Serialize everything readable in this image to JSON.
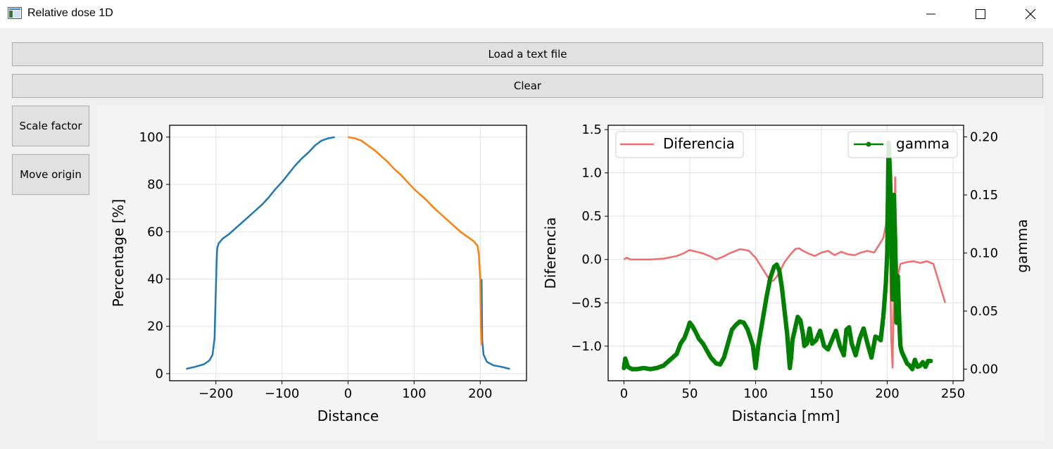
{
  "window": {
    "title": "Relative dose 1D",
    "controls": [
      "minimize",
      "maximize",
      "close"
    ]
  },
  "buttons": {
    "load": "Load a text file",
    "clear": "Clear",
    "scale_factor": "Scale factor",
    "move_origin": "Move origin"
  },
  "chart_data": [
    {
      "type": "line",
      "title": "",
      "xlabel": "Distance",
      "ylabel": "Percentage [%]",
      "xlim": [
        -270,
        270
      ],
      "ylim": [
        -3,
        105
      ],
      "xticks": [
        -200,
        -100,
        0,
        100,
        200
      ],
      "yticks": [
        0,
        20,
        40,
        60,
        80,
        100
      ],
      "grid": true,
      "series": [
        {
          "color": "#1f77b4",
          "x": [
            -245,
            -230,
            -218,
            -210,
            -205,
            -202,
            -200,
            -199,
            -198,
            -196,
            -190,
            -180,
            -170,
            -160,
            -150,
            -140,
            -130,
            -120,
            -110,
            -100,
            -90,
            -80,
            -70,
            -60,
            -50,
            -40,
            -30,
            -20,
            -10,
            0,
            245,
            240,
            235,
            230,
            220,
            210,
            205,
            203,
            202
          ],
          "y": [
            2,
            3,
            4,
            5.5,
            8,
            15,
            36,
            47,
            53,
            55,
            57,
            59,
            61.5,
            64,
            66.5,
            69,
            71.5,
            74.5,
            78,
            81,
            84.5,
            88,
            91,
            93.5,
            96.5,
            98.5,
            99.5,
            100,
            null,
            null,
            2,
            2.3,
            2.7,
            3,
            3.5,
            5,
            8,
            14,
            40
          ]
        },
        {
          "color": "#ff7f0e",
          "x": [
            0,
            10,
            20,
            30,
            40,
            50,
            60,
            70,
            80,
            90,
            100,
            110,
            120,
            130,
            140,
            150,
            160,
            170,
            180,
            190,
            196,
            198,
            200,
            201,
            202
          ],
          "y": [
            100,
            99.5,
            98.5,
            96.5,
            94.5,
            92,
            89.5,
            86.5,
            84,
            81,
            78,
            75.5,
            73,
            70,
            67.5,
            65,
            62.5,
            60,
            58,
            56,
            54,
            50,
            40,
            20,
            12
          ]
        }
      ]
    },
    {
      "type": "line",
      "title": "",
      "xlabel": "Distancia [mm]",
      "ylabel": "Diferencia",
      "ylabel_right": "gamma",
      "xlim": [
        -12,
        258
      ],
      "ylim": [
        -1.4,
        1.55
      ],
      "ylim_right": [
        -0.01,
        0.21
      ],
      "xticks": [
        0,
        50,
        100,
        150,
        200,
        250
      ],
      "yticks": [
        -1.0,
        -0.5,
        0.0,
        0.5,
        1.0,
        1.5
      ],
      "yticks_right": [
        0.0,
        0.05,
        0.1,
        0.15,
        0.2
      ],
      "grid": true,
      "legend": [
        {
          "label": "Diferencia",
          "position": "top-left"
        },
        {
          "label": "gamma",
          "position": "top-right"
        }
      ],
      "series": [
        {
          "name": "Diferencia",
          "color": "#f06d6d",
          "axis": "left",
          "x": [
            0,
            2,
            5,
            10,
            20,
            30,
            40,
            45,
            50,
            52,
            55,
            60,
            65,
            70,
            75,
            80,
            85,
            88,
            92,
            95,
            100,
            105,
            110,
            113,
            116,
            119,
            122,
            126,
            130,
            133,
            136,
            140,
            145,
            150,
            155,
            160,
            165,
            170,
            175,
            180,
            185,
            190,
            193,
            195,
            197,
            199,
            200,
            201,
            202,
            203,
            204,
            205,
            206,
            207,
            208,
            210,
            215,
            220,
            225,
            230,
            235,
            240,
            244
          ],
          "y": [
            0.0,
            0.02,
            0.0,
            0.0,
            0.0,
            0.01,
            0.04,
            0.07,
            0.11,
            0.1,
            0.09,
            0.07,
            0.04,
            0.0,
            0.03,
            0.07,
            0.1,
            0.12,
            0.11,
            0.1,
            0.02,
            -0.1,
            -0.22,
            -0.25,
            -0.2,
            -0.12,
            -0.03,
            0.05,
            0.12,
            0.13,
            0.1,
            0.07,
            0.04,
            0.08,
            0.1,
            0.05,
            0.09,
            0.06,
            0.05,
            0.08,
            0.1,
            0.08,
            0.15,
            0.2,
            0.25,
            0.4,
            0.9,
            1.1,
            0.2,
            -0.9,
            -1.25,
            -0.4,
            0.95,
            0.1,
            -0.2,
            -0.05,
            -0.03,
            -0.02,
            -0.04,
            -0.02,
            -0.05,
            -0.3,
            -0.5
          ]
        },
        {
          "name": "gamma",
          "color": "#008000",
          "axis": "right",
          "markers": true,
          "x": [
            0,
            1,
            3,
            6,
            10,
            15,
            20,
            25,
            30,
            35,
            40,
            43,
            46,
            48,
            50,
            52,
            54,
            57,
            60,
            63,
            66,
            70,
            73,
            76,
            79,
            82,
            85,
            88,
            91,
            94,
            98,
            100,
            102,
            105,
            108,
            111,
            114,
            116,
            118,
            120,
            122,
            124,
            125,
            126,
            127,
            128,
            130,
            132,
            134,
            136,
            137,
            139,
            141,
            143,
            146,
            149,
            152,
            155,
            158,
            161,
            164,
            167,
            169,
            171,
            173,
            176,
            179,
            182,
            185,
            188,
            191,
            193,
            195,
            197,
            198,
            199,
            200,
            201,
            202,
            203,
            204,
            205,
            206,
            207,
            208,
            209,
            210,
            211,
            213,
            215,
            217,
            219,
            221,
            223,
            225,
            227,
            229,
            231,
            233
          ],
          "y": [
            0.001,
            0.009,
            0.002,
            0.0,
            0.0,
            0.001,
            0.0,
            0.001,
            0.003,
            0.008,
            0.013,
            0.022,
            0.027,
            0.033,
            0.04,
            0.037,
            0.033,
            0.026,
            0.022,
            0.016,
            0.01,
            0.005,
            0.004,
            0.01,
            0.022,
            0.034,
            0.038,
            0.041,
            0.04,
            0.034,
            0.02,
            0.001,
            0.02,
            0.04,
            0.06,
            0.078,
            0.088,
            0.09,
            0.085,
            0.07,
            0.05,
            0.03,
            0.015,
            0.001,
            0.01,
            0.025,
            0.035,
            0.045,
            0.042,
            0.03,
            0.02,
            0.022,
            0.035,
            0.022,
            0.025,
            0.033,
            0.02,
            0.017,
            0.025,
            0.033,
            0.02,
            0.012,
            0.034,
            0.036,
            0.022,
            0.012,
            0.026,
            0.035,
            0.022,
            0.01,
            0.028,
            0.027,
            0.025,
            0.045,
            0.06,
            0.075,
            0.1,
            0.195,
            0.17,
            0.13,
            0.06,
            0.15,
            0.11,
            0.04,
            0.08,
            0.045,
            0.02,
            0.015,
            0.01,
            0.005,
            0.003,
            0.0,
            0.008,
            0.002,
            0.003,
            0.006,
            0.002,
            0.007,
            0.007
          ]
        }
      ]
    }
  ]
}
